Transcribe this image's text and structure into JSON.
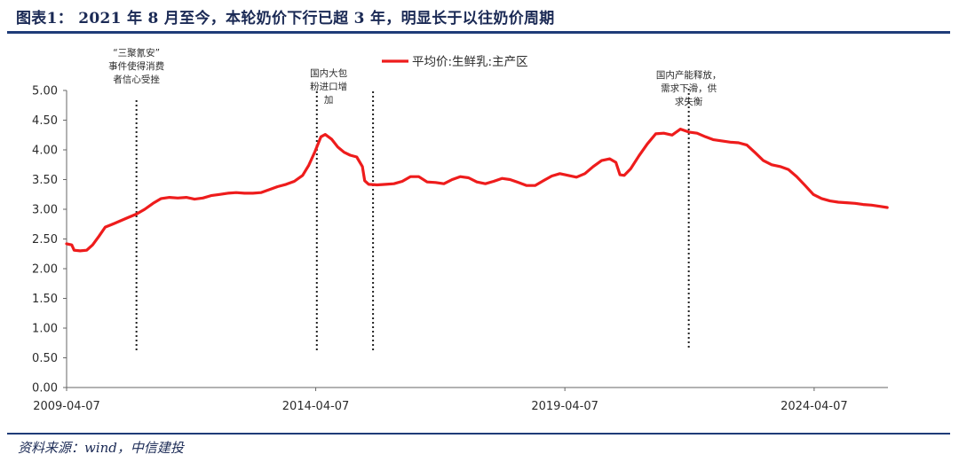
{
  "figure": {
    "title": "图表1：  2021 年 8 月至今，本轮奶价下行已超 3 年，明显长于以往奶价周期",
    "source": "资料来源：wind，中信建投"
  },
  "colors": {
    "series": "#ee1c1c",
    "rule": "#1f3c78",
    "axis": "#666666"
  },
  "chart_data": {
    "type": "line",
    "title": "",
    "xlabel": "",
    "ylabel": "",
    "ylim": [
      0.0,
      5.0
    ],
    "yticks": [
      "0.00",
      "0.50",
      "1.00",
      "1.50",
      "2.00",
      "2.50",
      "3.00",
      "3.50",
      "4.00",
      "4.50",
      "5.00"
    ],
    "xlim": [
      "2009-04-07",
      "2025-09-30"
    ],
    "xticks": [
      "2009-04-07",
      "2014-04-07",
      "2019-04-07",
      "2024-04-07"
    ],
    "legend": {
      "position": "top-center"
    },
    "grid": false,
    "series": [
      {
        "name": "平均价:生鲜乳:主产区",
        "color": "#ee1c1c",
        "points": [
          [
            "2009-04-07",
            2.42
          ],
          [
            "2009-05-15",
            2.4
          ],
          [
            "2009-06-01",
            2.31
          ],
          [
            "2009-07-15",
            2.3
          ],
          [
            "2009-09-01",
            2.31
          ],
          [
            "2009-10-15",
            2.4
          ],
          [
            "2009-12-01",
            2.55
          ],
          [
            "2010-01-15",
            2.7
          ],
          [
            "2010-03-01",
            2.74
          ],
          [
            "2010-05-01",
            2.8
          ],
          [
            "2010-07-01",
            2.86
          ],
          [
            "2010-09-01",
            2.92
          ],
          [
            "2010-11-01",
            3.0
          ],
          [
            "2011-01-01",
            3.1
          ],
          [
            "2011-03-01",
            3.18
          ],
          [
            "2011-05-01",
            3.2
          ],
          [
            "2011-07-01",
            3.19
          ],
          [
            "2011-09-01",
            3.2
          ],
          [
            "2011-11-01",
            3.17
          ],
          [
            "2012-01-01",
            3.19
          ],
          [
            "2012-03-01",
            3.23
          ],
          [
            "2012-05-01",
            3.25
          ],
          [
            "2012-07-01",
            3.27
          ],
          [
            "2012-09-01",
            3.28
          ],
          [
            "2012-11-01",
            3.27
          ],
          [
            "2013-01-01",
            3.27
          ],
          [
            "2013-03-01",
            3.28
          ],
          [
            "2013-05-01",
            3.33
          ],
          [
            "2013-07-01",
            3.38
          ],
          [
            "2013-09-01",
            3.42
          ],
          [
            "2013-11-01",
            3.47
          ],
          [
            "2014-01-01",
            3.57
          ],
          [
            "2014-02-15",
            3.74
          ],
          [
            "2014-04-01",
            3.97
          ],
          [
            "2014-05-15",
            4.22
          ],
          [
            "2014-06-15",
            4.26
          ],
          [
            "2014-08-01",
            4.18
          ],
          [
            "2014-09-15",
            4.05
          ],
          [
            "2014-11-01",
            3.96
          ],
          [
            "2014-12-15",
            3.91
          ],
          [
            "2015-02-01",
            3.88
          ],
          [
            "2015-03-15",
            3.72
          ],
          [
            "2015-04-01",
            3.48
          ],
          [
            "2015-05-01",
            3.42
          ],
          [
            "2015-07-01",
            3.41
          ],
          [
            "2015-09-01",
            3.42
          ],
          [
            "2015-11-01",
            3.43
          ],
          [
            "2016-01-01",
            3.47
          ],
          [
            "2016-03-01",
            3.55
          ],
          [
            "2016-05-01",
            3.55
          ],
          [
            "2016-07-01",
            3.46
          ],
          [
            "2016-09-01",
            3.45
          ],
          [
            "2016-11-01",
            3.43
          ],
          [
            "2017-01-01",
            3.5
          ],
          [
            "2017-03-01",
            3.55
          ],
          [
            "2017-05-01",
            3.53
          ],
          [
            "2017-07-01",
            3.46
          ],
          [
            "2017-09-01",
            3.43
          ],
          [
            "2017-11-01",
            3.47
          ],
          [
            "2018-01-01",
            3.52
          ],
          [
            "2018-03-01",
            3.5
          ],
          [
            "2018-05-01",
            3.45
          ],
          [
            "2018-07-01",
            3.4
          ],
          [
            "2018-09-01",
            3.4
          ],
          [
            "2018-11-01",
            3.48
          ],
          [
            "2019-01-01",
            3.56
          ],
          [
            "2019-03-01",
            3.6
          ],
          [
            "2019-05-01",
            3.57
          ],
          [
            "2019-07-01",
            3.54
          ],
          [
            "2019-09-01",
            3.6
          ],
          [
            "2019-11-01",
            3.72
          ],
          [
            "2020-01-01",
            3.82
          ],
          [
            "2020-03-01",
            3.85
          ],
          [
            "2020-04-15",
            3.79
          ],
          [
            "2020-05-15",
            3.58
          ],
          [
            "2020-06-15",
            3.57
          ],
          [
            "2020-08-01",
            3.68
          ],
          [
            "2020-10-01",
            3.9
          ],
          [
            "2020-12-01",
            4.1
          ],
          [
            "2021-02-01",
            4.27
          ],
          [
            "2021-04-01",
            4.28
          ],
          [
            "2021-06-01",
            4.25
          ],
          [
            "2021-08-01",
            4.35
          ],
          [
            "2021-10-01",
            4.3
          ],
          [
            "2021-12-01",
            4.28
          ],
          [
            "2022-02-01",
            4.22
          ],
          [
            "2022-04-01",
            4.17
          ],
          [
            "2022-06-01",
            4.15
          ],
          [
            "2022-08-01",
            4.13
          ],
          [
            "2022-10-01",
            4.12
          ],
          [
            "2022-12-01",
            4.08
          ],
          [
            "2023-02-01",
            3.95
          ],
          [
            "2023-04-01",
            3.82
          ],
          [
            "2023-06-01",
            3.75
          ],
          [
            "2023-08-01",
            3.72
          ],
          [
            "2023-10-01",
            3.67
          ],
          [
            "2023-12-01",
            3.55
          ],
          [
            "2024-02-01",
            3.4
          ],
          [
            "2024-04-01",
            3.25
          ],
          [
            "2024-06-01",
            3.18
          ],
          [
            "2024-08-01",
            3.14
          ],
          [
            "2024-10-01",
            3.12
          ],
          [
            "2024-12-01",
            3.11
          ],
          [
            "2025-02-01",
            3.1
          ],
          [
            "2025-04-01",
            3.08
          ],
          [
            "2025-06-01",
            3.07
          ],
          [
            "2025-08-01",
            3.05
          ],
          [
            "2025-09-25",
            3.03
          ]
        ]
      }
    ],
    "annotations": [
      {
        "date": "2010-09-01",
        "text": [
          "“三聚氰安”",
          "事件使得消费",
          "者信心受挫"
        ]
      },
      {
        "date": "2014-04-15",
        "text": []
      },
      {
        "date": "2015-06-01",
        "text": [
          "国内大包",
          "粉进口增",
          "加"
        ]
      },
      {
        "date": "2021-10-01",
        "text": [
          "国内产能释放，",
          "需求下滑，供",
          "求失衡"
        ]
      }
    ]
  }
}
